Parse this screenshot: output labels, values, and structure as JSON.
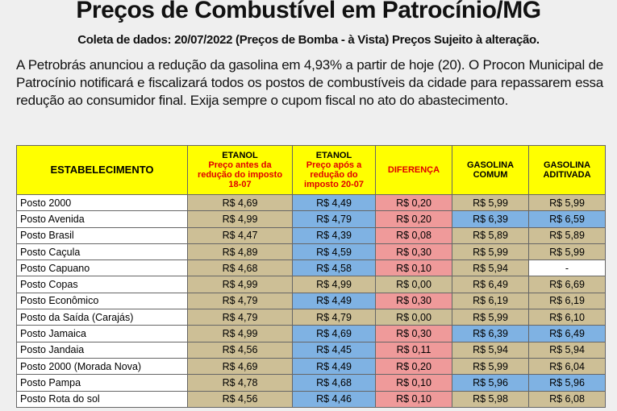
{
  "header": {
    "title": "Preços de Combustível em Patrocínio/MG",
    "subtitle": "Coleta de dados: 20/07/2022 (Preços de Bomba - à Vista) Preços Sujeito à alteração."
  },
  "intro": "A Petrobrás anunciou a redução da gasolina em 4,93% a partir de hoje (20). O Procon Municipal de Patrocínio notificará e fiscalizará todos os postos de combustíveis da cidade para repassarem essa redução ao consumidor final. Exija sempre o cupom fiscal no ato do abastecimento.",
  "table": {
    "columns": [
      {
        "title": "ESTABELECIMENTO"
      },
      {
        "title": "ETANOL",
        "note": "Preço antes da redução do imposto 18-07"
      },
      {
        "title": "ETANOL",
        "note": "Preço após a redução do imposto 20-07"
      },
      {
        "title": "DIFERENÇA"
      },
      {
        "title": "GASOLINA COMUM"
      },
      {
        "title": "GASOLINA ADITIVADA"
      }
    ],
    "rows": [
      [
        "Posto 2000",
        "R$ 4,69",
        "R$ 4,49",
        "R$ 0,20",
        "R$ 5,99",
        "R$ 5,99"
      ],
      [
        "Posto Avenida",
        "R$ 4,99",
        "R$ 4,79",
        "R$ 0,20",
        "R$ 6,39",
        "R$ 6,59"
      ],
      [
        "Posto Brasil",
        "R$ 4,47",
        "R$ 4,39",
        "R$ 0,08",
        "R$ 5,89",
        "R$ 5,89"
      ],
      [
        "Posto Caçula",
        "R$ 4,89",
        "R$ 4,59",
        "R$ 0,30",
        "R$ 5,99",
        "R$ 5,99"
      ],
      [
        "Posto Capuano",
        "R$ 4,68",
        "R$ 4,58",
        "R$ 0,10",
        "R$ 5,94",
        "-"
      ],
      [
        "Posto Copas",
        "R$ 4,99",
        "R$ 4,99",
        "R$ 0,00",
        "R$ 6,49",
        "R$ 6,69"
      ],
      [
        "Posto Econômico",
        "R$ 4,79",
        "R$ 4,49",
        "R$ 0,30",
        "R$ 6,19",
        "R$ 6,19"
      ],
      [
        "Posto da Saída (Carajás)",
        "R$ 4,79",
        "R$ 4,79",
        "R$ 0,00",
        "R$ 5,99",
        "R$ 6,10"
      ],
      [
        "Posto Jamaica",
        "R$ 4,99",
        "R$ 4,69",
        "R$ 0,30",
        "R$ 6,39",
        "R$ 6,49"
      ],
      [
        "Posto Jandaia",
        "R$ 4,56",
        "R$ 4,45",
        "R$ 0,11",
        "R$ 5,94",
        "R$ 5,94"
      ],
      [
        "Posto 2000 (Morada Nova)",
        "R$ 4,69",
        "R$ 4,49",
        "R$ 0,20",
        "R$ 5,99",
        "R$ 6,04"
      ],
      [
        "Posto Pampa",
        "R$ 4,78",
        "R$ 4,68",
        "R$ 0,10",
        "R$ 5,96",
        "R$ 5,96"
      ],
      [
        "Posto Rota do sol",
        "R$ 4,56",
        "R$ 4,46",
        "R$ 0,10",
        "R$ 5,98",
        "R$ 6,08"
      ]
    ]
  }
}
